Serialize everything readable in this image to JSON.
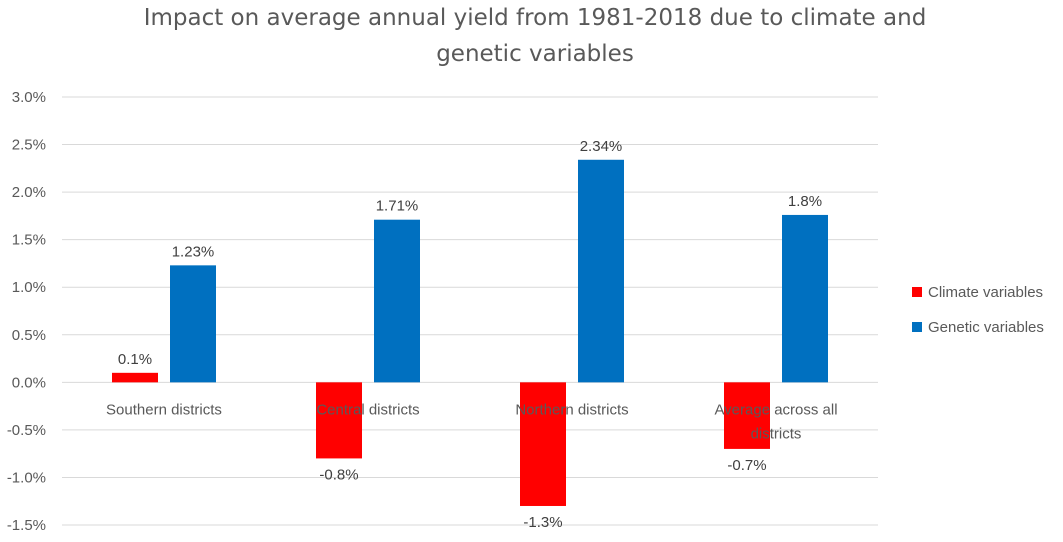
{
  "chart_data": {
    "type": "bar",
    "title_lines": [
      "Impact on average annual yield from 1981-2018 due to climate and",
      "genetic variables"
    ],
    "categories": [
      [
        "Southern districts"
      ],
      [
        "Central districts"
      ],
      [
        "Northern districts"
      ],
      [
        "Average across all",
        "districts"
      ]
    ],
    "series": [
      {
        "name": "Climate variables",
        "color": "#FF0000",
        "values": [
          0.1,
          -0.8,
          -1.3,
          -0.7
        ],
        "value_labels": [
          "0.1%",
          "-0.8%",
          "-1.3%",
          "-0.7%"
        ]
      },
      {
        "name": "Genetic variables",
        "color": "#0070C0",
        "values": [
          1.23,
          1.71,
          2.34,
          1.76
        ],
        "value_labels": [
          "1.23%",
          "1.71%",
          "2.34%",
          "1.8%"
        ]
      }
    ],
    "ylim": [
      -1.5,
      3.0
    ],
    "yticks": [
      3.0,
      2.5,
      2.0,
      1.5,
      1.0,
      0.5,
      0.0,
      -0.5,
      -1.0,
      -1.5
    ],
    "ytick_labels": [
      "3.0%",
      "2.5%",
      "2.0%",
      "1.5%",
      "1.0%",
      "0.5%",
      "0.0%",
      "-0.5%",
      "-1.0%",
      "-1.5%"
    ],
    "xlabel": "",
    "ylabel": "",
    "legend": "right",
    "grid": true,
    "gridline_color": "#D9D9D9"
  }
}
